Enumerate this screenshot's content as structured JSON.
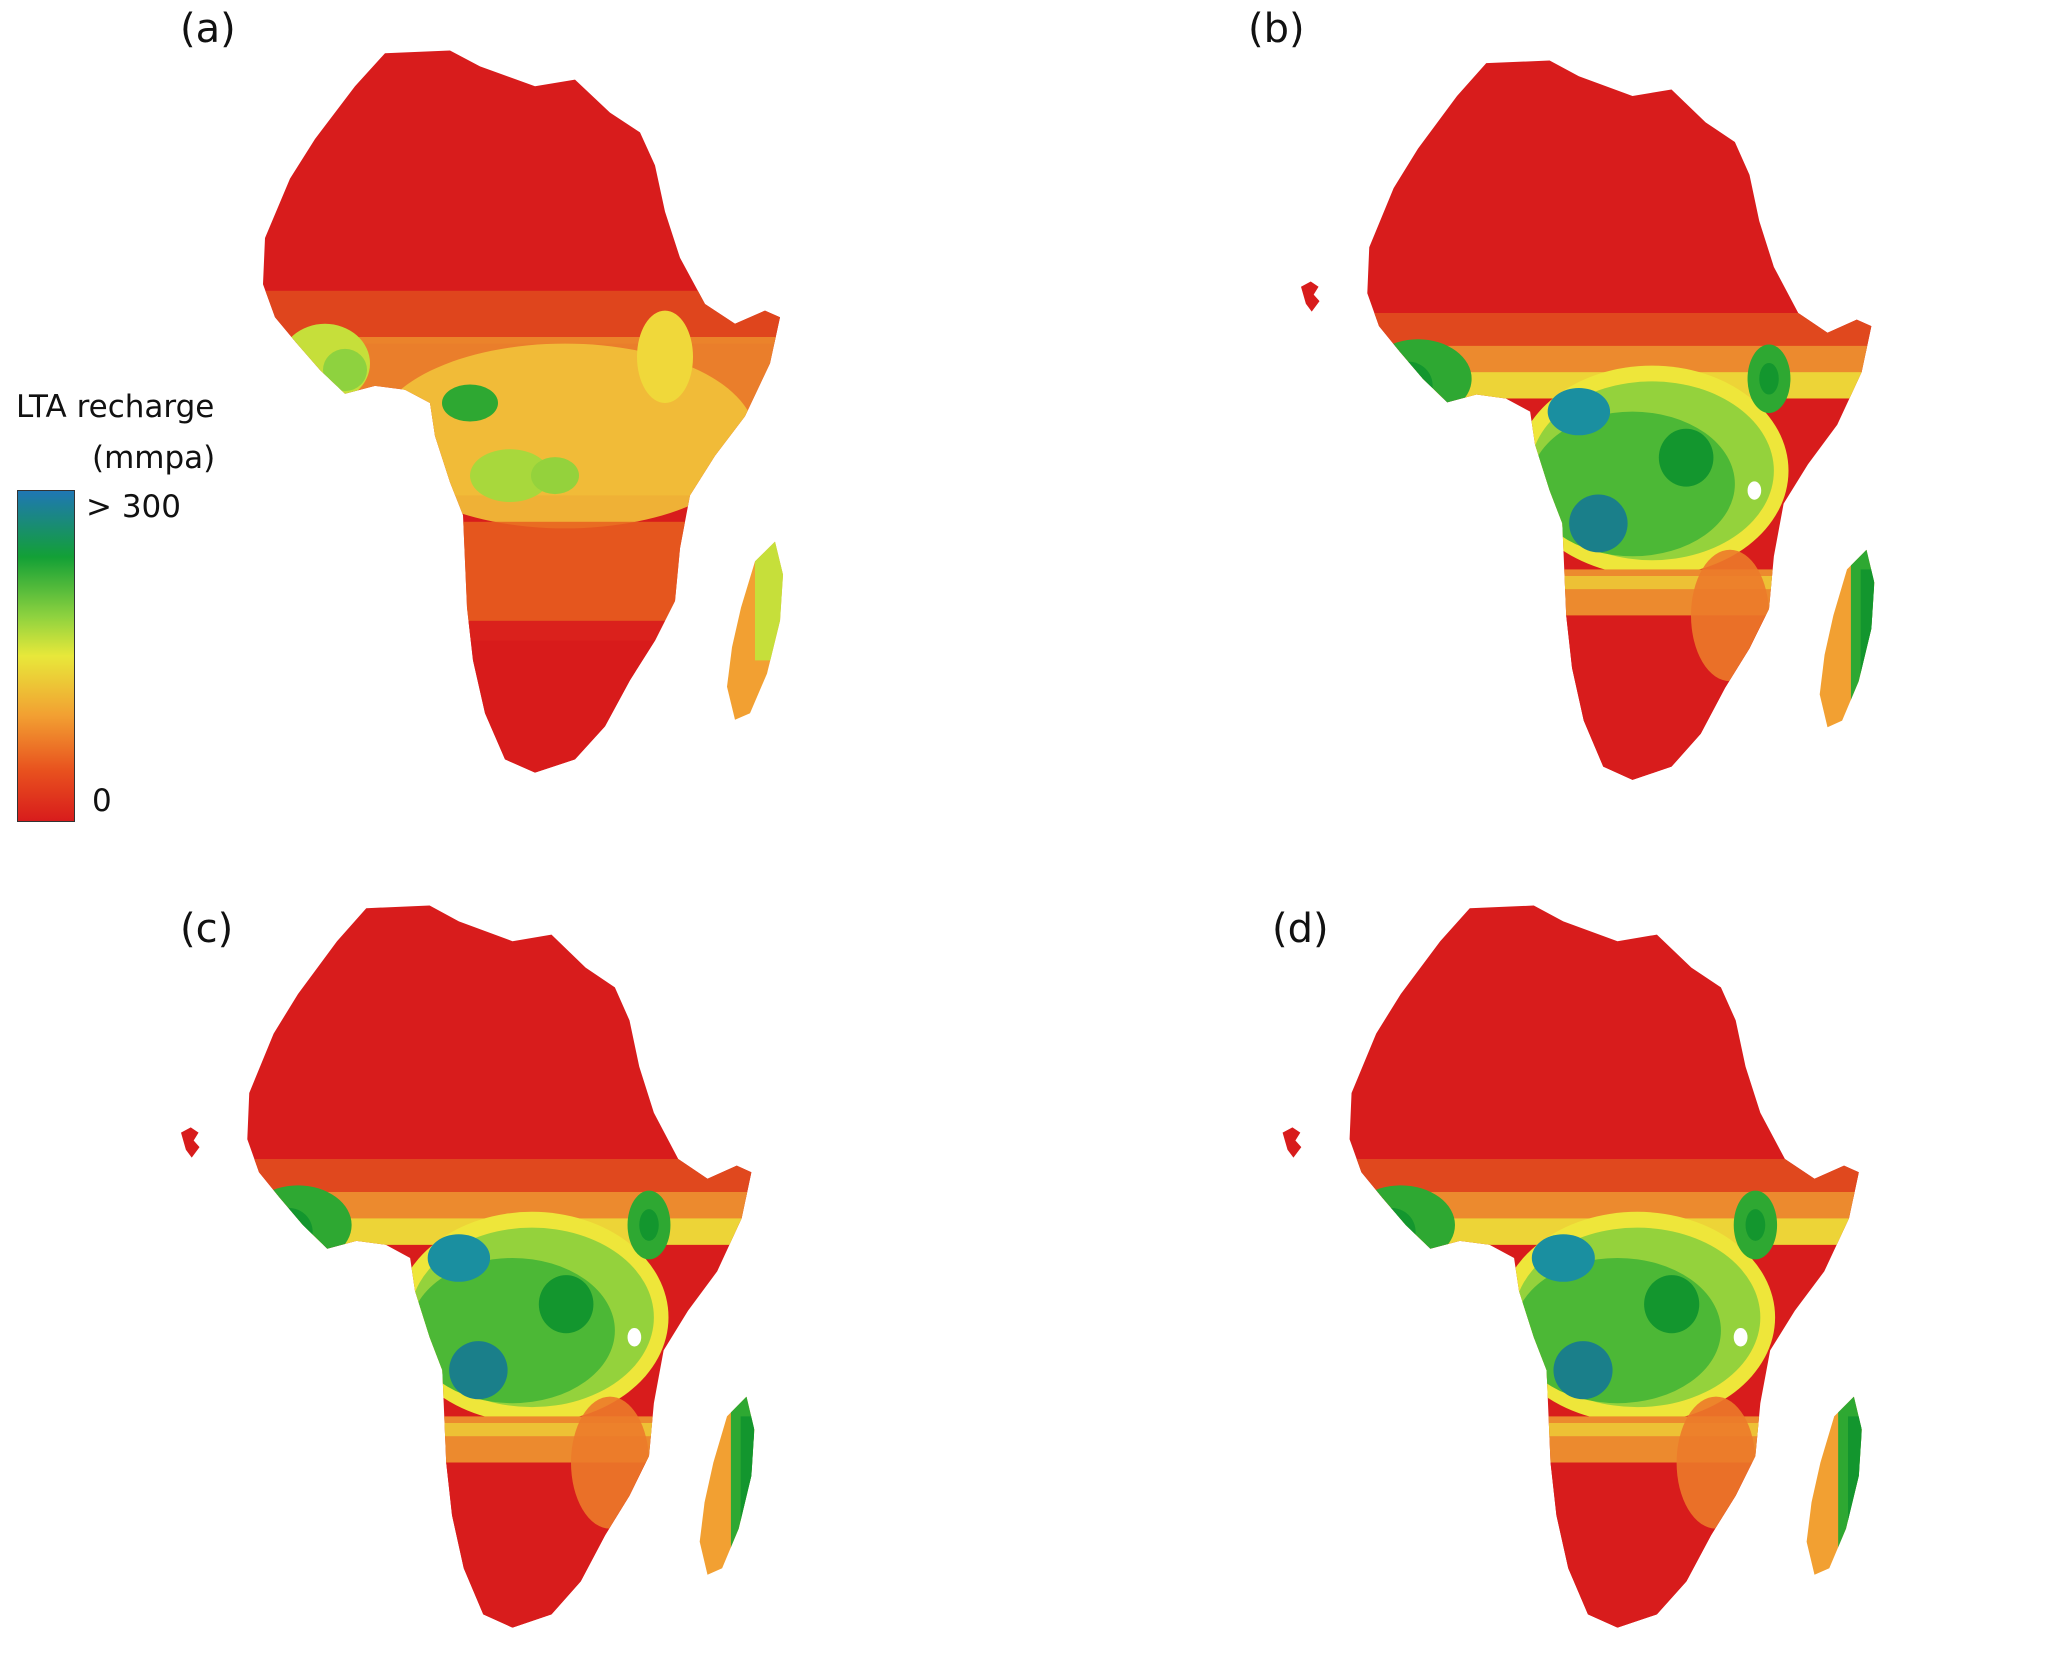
{
  "panels": [
    {
      "id": "a",
      "label": "(a)",
      "variant": "low"
    },
    {
      "id": "b",
      "label": "(b)",
      "variant": "high"
    },
    {
      "id": "c",
      "label": "(c)",
      "variant": "high"
    },
    {
      "id": "d",
      "label": "(d)",
      "variant": "high"
    }
  ],
  "legend": {
    "title_line1": "LTA recharge",
    "title_line2": "(mmpa)",
    "max_label": "> 300",
    "min_label": "0",
    "colors": [
      "#1f77b4",
      "#13a036",
      "#8ed23f",
      "#e8e83a",
      "#f2a032",
      "#e8501e",
      "#d81c1c"
    ]
  },
  "colors": {
    "dry": "#d81c1c",
    "semi_dry": "#e85a1e",
    "moderate": "#f2a032",
    "yellow": "#eee63a",
    "light_green": "#94d23c",
    "green": "#2ea832",
    "dark_green": "#13962e",
    "blue": "#1a8fa0"
  }
}
